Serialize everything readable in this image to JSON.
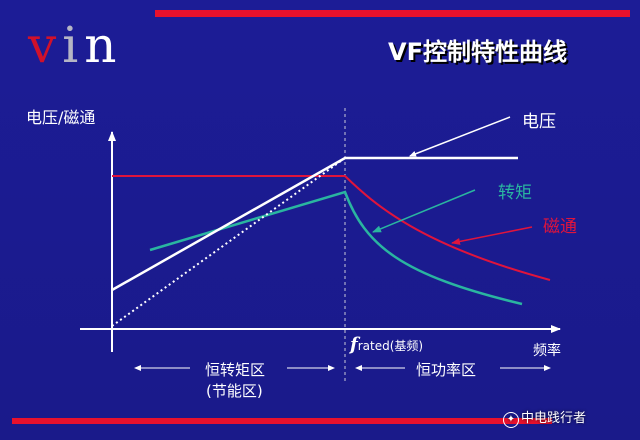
{
  "logo": {
    "v": "v",
    "i": "i",
    "n": "n"
  },
  "title": "VF控制特性曲线",
  "y_axis_label": "电压/磁通",
  "x_axis_label": "频率",
  "rated_label": {
    "f": "f",
    "sub": "rated",
    "note": "(基频)"
  },
  "curve_labels": {
    "voltage": "电压",
    "torque": "转矩",
    "flux": "磁通"
  },
  "regions": {
    "left_line1": "恒转矩区",
    "left_line2": "(节能区)",
    "right": "恒功率区"
  },
  "watermark": "中电践行者",
  "colors": {
    "background": "#1a1a8c",
    "accent_red": "#e8112d",
    "voltage": "#ffffff",
    "torque": "#2ab5a0",
    "flux": "#e0143c"
  }
}
